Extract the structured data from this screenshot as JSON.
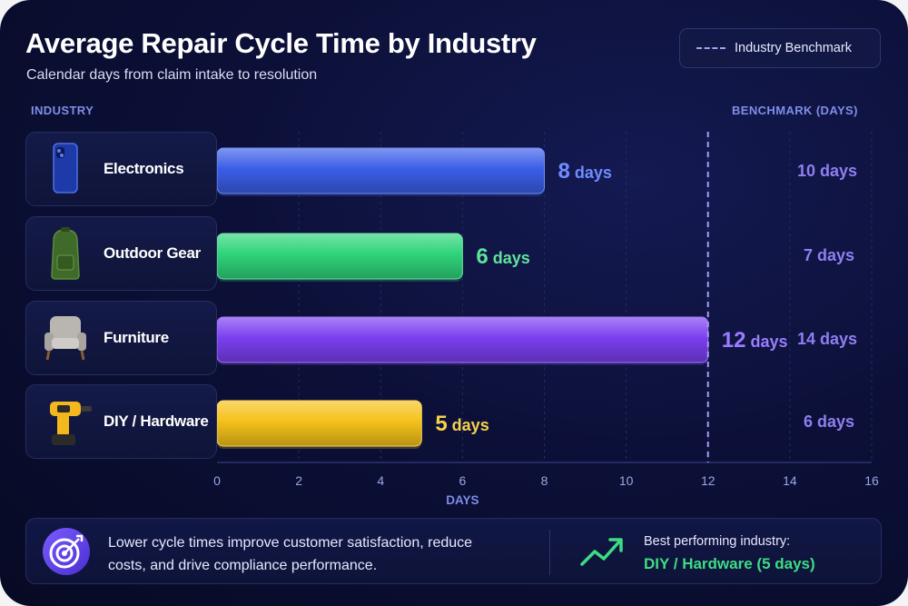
{
  "header": {
    "title": "Average Repair Cycle Time by Industry",
    "subtitle": "Calendar days from claim intake to resolution",
    "legend_label": "Industry Benchmark"
  },
  "columns": {
    "industry": "INDUSTRY",
    "benchmark": "BENCHMARK (DAYS)"
  },
  "chart_data": {
    "type": "bar",
    "orientation": "horizontal",
    "title": "Average Repair Cycle Time by Industry",
    "subtitle": "Calendar days from claim intake to resolution",
    "xlabel": "DAYS",
    "ylabel": "INDUSTRY",
    "xlim": [
      0,
      16
    ],
    "xticks": [
      0,
      2,
      4,
      6,
      8,
      10,
      12,
      14,
      16
    ],
    "grid": true,
    "legend_position": "top-right",
    "categories": [
      "Electronics",
      "Outdoor Gear",
      "Furniture",
      "DIY / Hardware"
    ],
    "values": [
      8,
      6,
      12,
      5
    ],
    "bar_labels": [
      "8 days",
      "6 days",
      "12 days",
      "5 days"
    ],
    "benchmark_line": 12,
    "benchmark_labels": [
      "10 days",
      "7 days",
      "14 days",
      "6 days"
    ],
    "colors": [
      "#3b5ee8",
      "#2ed47a",
      "#7b3ff0",
      "#f5c21b"
    ],
    "label_colors": [
      "#6f8cff",
      "#5fe39a",
      "#9a7dff",
      "#f7d04a"
    ],
    "icons": [
      "smartphone-icon",
      "backpack-icon",
      "armchair-icon",
      "power-drill-icon"
    ]
  },
  "footer": {
    "message": "Lower cycle times improve customer satisfaction, reduce costs, and drive compliance performance.",
    "best_label": "Best performing industry:",
    "best_value": "DIY / Hardware (5 days)",
    "target_icon": "target-icon",
    "trend_icon": "trend-up-icon"
  }
}
